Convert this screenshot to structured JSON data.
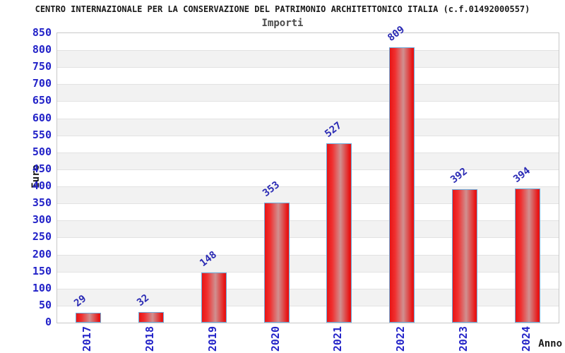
{
  "chart_data": {
    "type": "bar",
    "title": "CENTRO INTERNAZIONALE PER LA CONSERVAZIONE DEL PATRIMONIO ARCHITETTONICO ITALIA (c.f.01492000557)",
    "subtitle": "Importi",
    "xlabel": "Anno",
    "ylabel": "Euro",
    "categories": [
      "2017",
      "2018",
      "2019",
      "2020",
      "2021",
      "2022",
      "2023",
      "2024"
    ],
    "values": [
      29,
      32,
      148,
      353,
      527,
      809,
      392,
      394
    ],
    "ylim": [
      0,
      850
    ],
    "ytick_step": 50,
    "grid": "horizontal-bands",
    "legend_position": "none",
    "value_labels_shown": true,
    "colors": {
      "tick_label_blue": "#2323c8",
      "value_label_blue": "#2a2ab4",
      "title_color": "#1a1a1a",
      "subtitle_color": "#4a4a4a",
      "bar_red": "#e81414",
      "bar_red_bright": "#f03030",
      "bar_highlight": "#d09090",
      "bar_border": "#6ea9d8",
      "band_gray": "#f2f2f2",
      "band_white": "#ffffff",
      "grid_line": "#e2e2e2",
      "plot_border": "#c8c8c8"
    }
  }
}
